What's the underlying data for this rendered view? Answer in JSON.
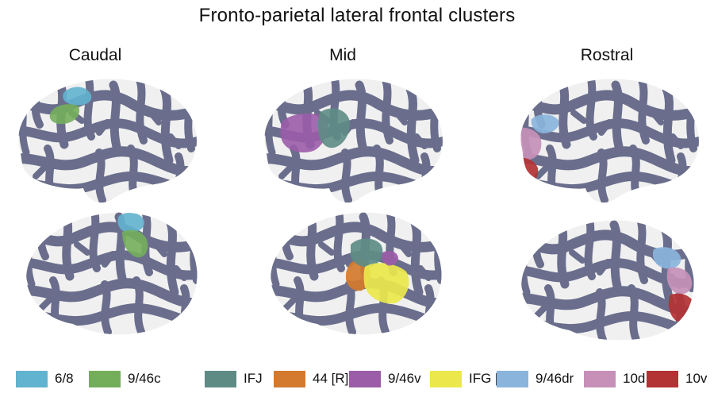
{
  "title": "Fronto-parietal lateral frontal clusters",
  "columns": [
    {
      "label": "Caudal"
    },
    {
      "label": "Mid"
    },
    {
      "label": "Rostral"
    }
  ],
  "colors": {
    "cortex": "#f0f0f0",
    "sulci": "#6a6e8c",
    "c_6_8": "#62b3cf",
    "c_9_46c": "#74ae5b",
    "c_IFJ": "#5e8c85",
    "c_44R": "#d47a2e",
    "c_9_46v": "#9b5ca8",
    "c_IFGR": "#ece84c",
    "c_9_46dr": "#8ab4dc",
    "c_10d": "#c690b8",
    "c_10v": "#b33234"
  },
  "legend": [
    {
      "label": "6/8",
      "color": "#62b3cf"
    },
    {
      "label": "9/46c",
      "color": "#74ae5b"
    },
    {
      "label": "IFJ",
      "color": "#5e8c85"
    },
    {
      "label": "44 [R]",
      "color": "#d47a2e"
    },
    {
      "label": "9/46v",
      "color": "#9b5ca8"
    },
    {
      "label": "IFG [R]",
      "color": "#ece84c"
    },
    {
      "label": "9/46dr",
      "color": "#8ab4dc"
    },
    {
      "label": "10d",
      "color": "#c690b8"
    },
    {
      "label": "10v",
      "color": "#b33234"
    }
  ]
}
